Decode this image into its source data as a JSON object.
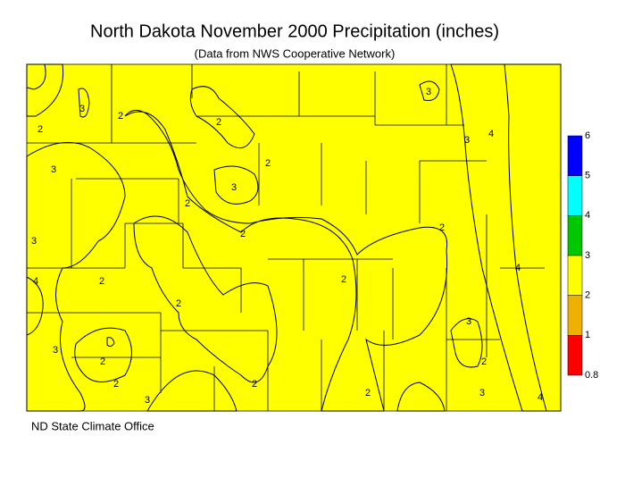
{
  "title": "North Dakota November 2000 Precipitation (inches)",
  "subtitle": "(Data from NWS Cooperative Network)",
  "footer": "ND State Climate Office",
  "legend": {
    "ticks": [
      6,
      5,
      4,
      3,
      2,
      1,
      0.8
    ],
    "colors": [
      "#0000ff",
      "#00ffff",
      "#00c800",
      "#ffff00",
      "#f0b000",
      "#ff0000"
    ]
  },
  "contour_labels": [
    3,
    2,
    3,
    2,
    2,
    3,
    2,
    2,
    3,
    3,
    4,
    2,
    3,
    4,
    2,
    2,
    2,
    2,
    3,
    2,
    2,
    3,
    2,
    2,
    3,
    4,
    4,
    2,
    3
  ]
}
